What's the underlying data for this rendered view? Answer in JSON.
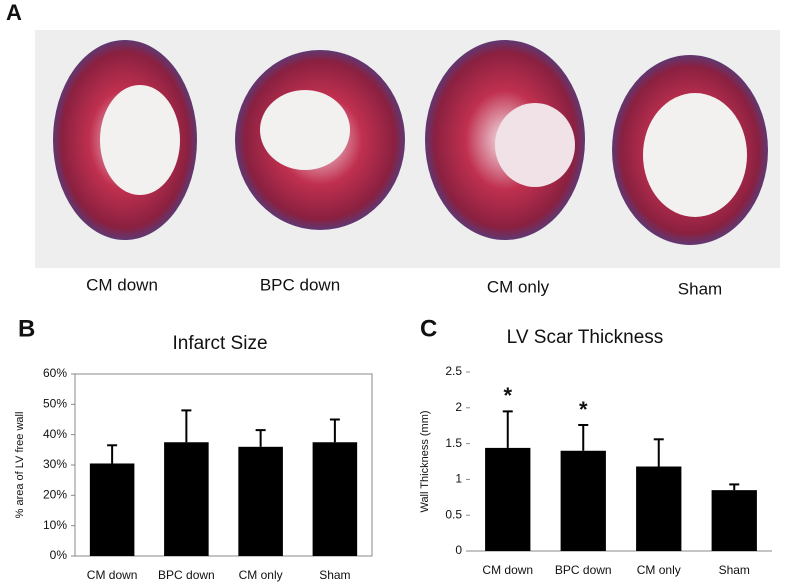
{
  "panel_a": {
    "label": "A",
    "captions": [
      "CM down",
      "BPC down",
      "CM only",
      "Sham"
    ]
  },
  "chart_data": [
    {
      "type": "bar",
      "panel_label": "B",
      "title": "Infarct Size",
      "y_label": "% area of LV free wall",
      "categories": [
        "CM down",
        "BPC down",
        "CM only",
        "Sham"
      ],
      "values": [
        30.5,
        37.5,
        36,
        37.5
      ],
      "errors": [
        6,
        10.5,
        5.5,
        7.5
      ],
      "color": "#000000",
      "ylim": [
        0,
        60
      ],
      "yticks": [
        {
          "value": 0,
          "label": "0%"
        },
        {
          "value": 10,
          "label": "10%"
        },
        {
          "value": 20,
          "label": "20%"
        },
        {
          "value": 30,
          "label": "30%"
        },
        {
          "value": 40,
          "label": "40%"
        },
        {
          "value": 50,
          "label": "50%"
        },
        {
          "value": 60,
          "label": "60%"
        }
      ],
      "frame": true
    },
    {
      "type": "bar",
      "panel_label": "C",
      "title": "LV Scar Thickness",
      "y_label": "Wall Thickness (mm)",
      "categories": [
        "CM down",
        "BPC down",
        "CM only",
        "Sham"
      ],
      "values": [
        1.44,
        1.4,
        1.18,
        0.85
      ],
      "errors": [
        0.51,
        0.36,
        0.38,
        0.08
      ],
      "color": "#000000",
      "significance": [
        "*",
        "*",
        null,
        null
      ],
      "ylim": [
        0,
        2.5
      ],
      "yticks": [
        0,
        0.5,
        1,
        1.5,
        2,
        2.5
      ],
      "frame": false
    }
  ]
}
